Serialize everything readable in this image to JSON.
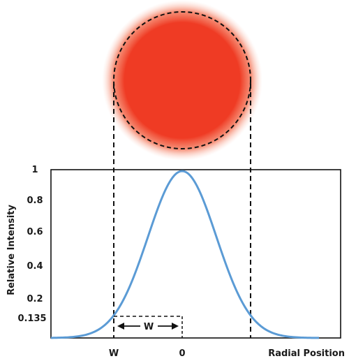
{
  "figure": {
    "ylabel": "Relative Intensity",
    "xlabel": "Radial Position",
    "y_ticks": [
      "1",
      "0.8",
      "0.6",
      "0.4",
      "0.2",
      "0.135"
    ],
    "x_ticks": [
      "W",
      "0"
    ],
    "width_annotation": "W",
    "beam_color": "#ef3b24",
    "curve_color": "#5b9bd5"
  },
  "chart_data": {
    "type": "line",
    "series": [
      {
        "x": [
          -2.0,
          -1.5,
          -1.0,
          -0.5,
          0.0,
          0.5,
          1.0,
          1.5,
          2.0
        ],
        "values": [
          0.0003,
          0.011,
          0.135,
          0.607,
          1.0,
          0.607,
          0.135,
          0.011,
          0.0003
        ]
      }
    ],
    "xlabel": "Radial Position",
    "ylabel": "Relative Intensity",
    "ylim": [
      0,
      1
    ],
    "xlim": [
      -2.0,
      2.0
    ],
    "ytick_labels": [
      "1",
      "0.8",
      "0.6",
      "0.4",
      "0.2",
      "0.135"
    ],
    "xtick_labels": [
      "W",
      "0"
    ],
    "grid": false
  }
}
